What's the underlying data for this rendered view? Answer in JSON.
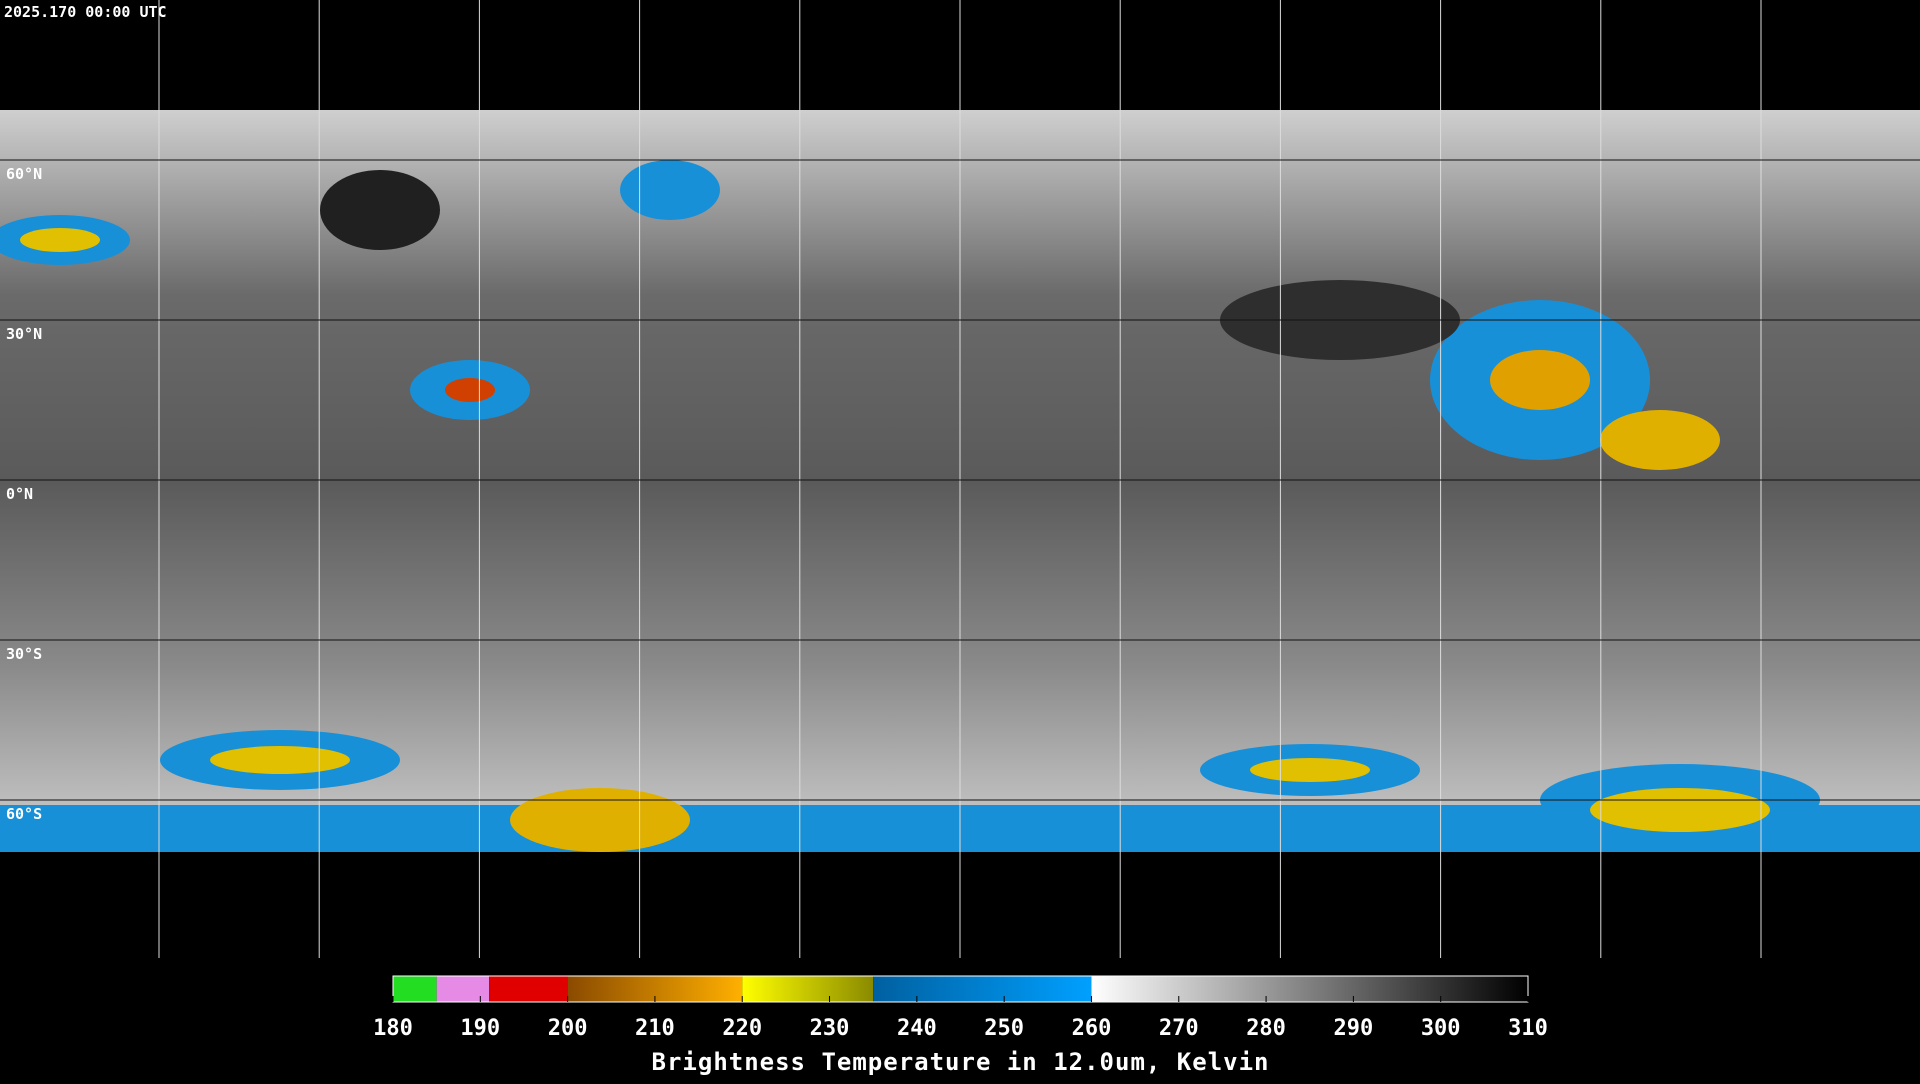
{
  "header": {
    "timestamp": "2025.170 00:00 UTC"
  },
  "map": {
    "lat_labels": [
      "60°N",
      "30°N",
      "0°N",
      "30°S",
      "60°S"
    ]
  },
  "colorbar": {
    "title": "Brightness Temperature in 12.0um, Kelvin",
    "range": [
      180,
      310
    ],
    "ticks": [
      180,
      190,
      200,
      210,
      220,
      230,
      240,
      250,
      260,
      270,
      280,
      290,
      300,
      310
    ],
    "segments": [
      {
        "start": 180,
        "end": 185,
        "from": "#22dd22",
        "to": "#22dd22"
      },
      {
        "start": 185,
        "end": 191,
        "from": "#e58be5",
        "to": "#e58be5"
      },
      {
        "start": 191,
        "end": 200,
        "from": "#e00000",
        "to": "#e00000"
      },
      {
        "start": 200,
        "end": 220,
        "from": "#8a4a00",
        "to": "#ffb000"
      },
      {
        "start": 220,
        "end": 235,
        "from": "#ffff00",
        "to": "#8a8a00"
      },
      {
        "start": 235,
        "end": 260,
        "from": "#0060a0",
        "to": "#00a0ff"
      },
      {
        "start": 260,
        "end": 310,
        "from": "#ffffff",
        "to": "#000000"
      }
    ]
  }
}
